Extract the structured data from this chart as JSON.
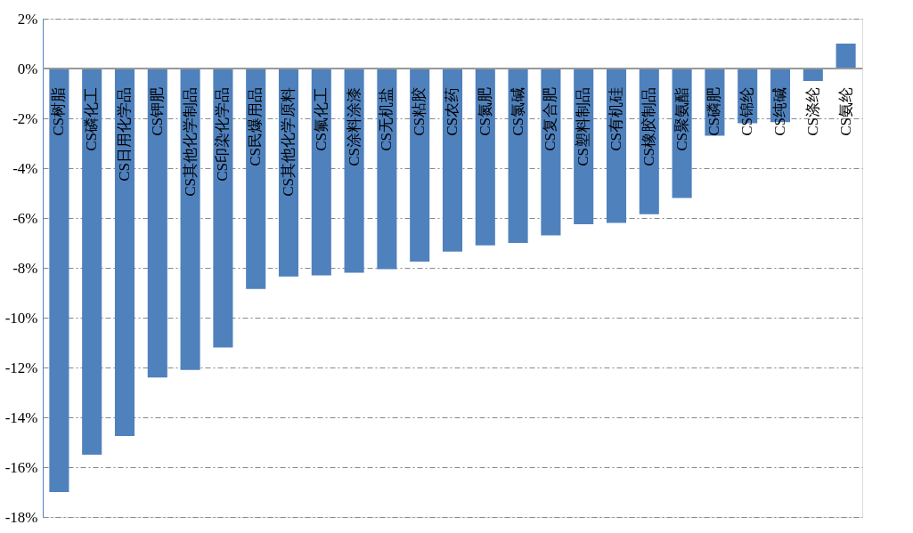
{
  "chart_data": {
    "type": "bar",
    "categories": [
      "CS树脂",
      "CS磷化工",
      "CS日用化学品",
      "CS钾肥",
      "CS其他化学制品",
      "CS印染化学品",
      "CS民爆用品",
      "CS其他化学原料",
      "CS氟化工",
      "CS涂料涂漆",
      "CS无机盐",
      "CS粘胶",
      "CS农药",
      "CS氮肥",
      "CS氯碱",
      "CS复合肥",
      "CS塑料制品",
      "CS有机硅",
      "CS橡胶制品",
      "CS聚氨酯",
      "CS磷肥",
      "CS锦纶",
      "CS纯碱",
      "CS涤纶",
      "CS氨纶"
    ],
    "values": [
      -17.0,
      -15.5,
      -14.75,
      -12.4,
      -12.1,
      -11.2,
      -8.85,
      -8.35,
      -8.3,
      -8.2,
      -8.05,
      -7.75,
      -7.35,
      -7.1,
      -7.0,
      -6.7,
      -6.25,
      -6.2,
      -5.85,
      -5.2,
      -2.7,
      -2.2,
      -2.15,
      -0.5,
      1.0
    ],
    "color": "#4f81bd",
    "ylim": [
      -18,
      2
    ],
    "yticks": [
      {
        "value": 2,
        "label": "2%"
      },
      {
        "value": 0,
        "label": "0%"
      },
      {
        "value": -2,
        "label": "-2%"
      },
      {
        "value": -4,
        "label": "-4%"
      },
      {
        "value": -6,
        "label": "-6%"
      },
      {
        "value": -8,
        "label": "-8%"
      },
      {
        "value": -10,
        "label": "-10%"
      },
      {
        "value": -12,
        "label": "-12%"
      },
      {
        "value": -14,
        "label": "-14%"
      },
      {
        "value": -16,
        "label": "-16%"
      },
      {
        "value": -18,
        "label": "-18%"
      }
    ],
    "grid": "y"
  }
}
